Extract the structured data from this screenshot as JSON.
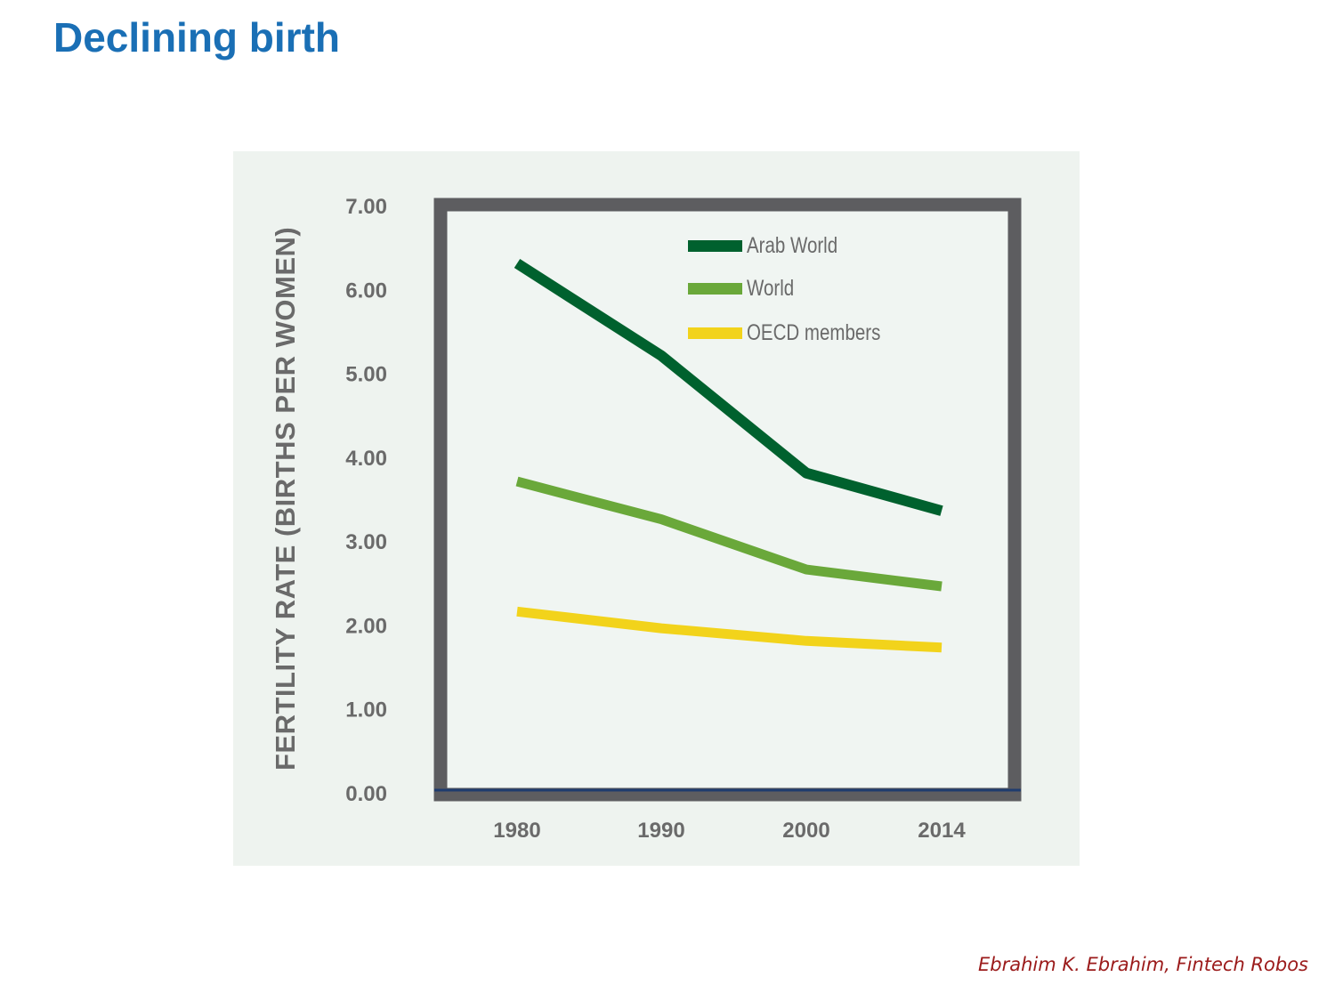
{
  "title": "Declining birth",
  "footer": "Ebrahim K. Ebrahim, Fintech Robos",
  "chart_data": {
    "type": "line",
    "ylabel": "FERTILITY RATE (BIRTHS PER WOMEN)",
    "xlabel": "",
    "x": [
      "1980",
      "1990",
      "2000",
      "2014"
    ],
    "y_ticks": [
      "0.00",
      "1.00",
      "2.00",
      "3.00",
      "4.00",
      "5.00",
      "6.00",
      "7.00"
    ],
    "ylim": [
      0,
      7
    ],
    "grid": false,
    "legend_position": "top-right",
    "series": [
      {
        "name": "Arab World",
        "values": [
          6.3,
          5.2,
          3.8,
          3.35
        ],
        "color": "#00612e"
      },
      {
        "name": "World",
        "values": [
          3.7,
          3.25,
          2.65,
          2.45
        ],
        "color": "#6aa83a"
      },
      {
        "name": "OECD members",
        "values": [
          2.15,
          1.95,
          1.8,
          1.72
        ],
        "color": "#f2d31b"
      }
    ],
    "colors": {
      "frame": "#5d5d60",
      "plot_background": "#f0f5f2",
      "panel_background": "#eef3ef",
      "baseline": "#1f3c6e",
      "tick_text": "#6a6a6a"
    }
  }
}
